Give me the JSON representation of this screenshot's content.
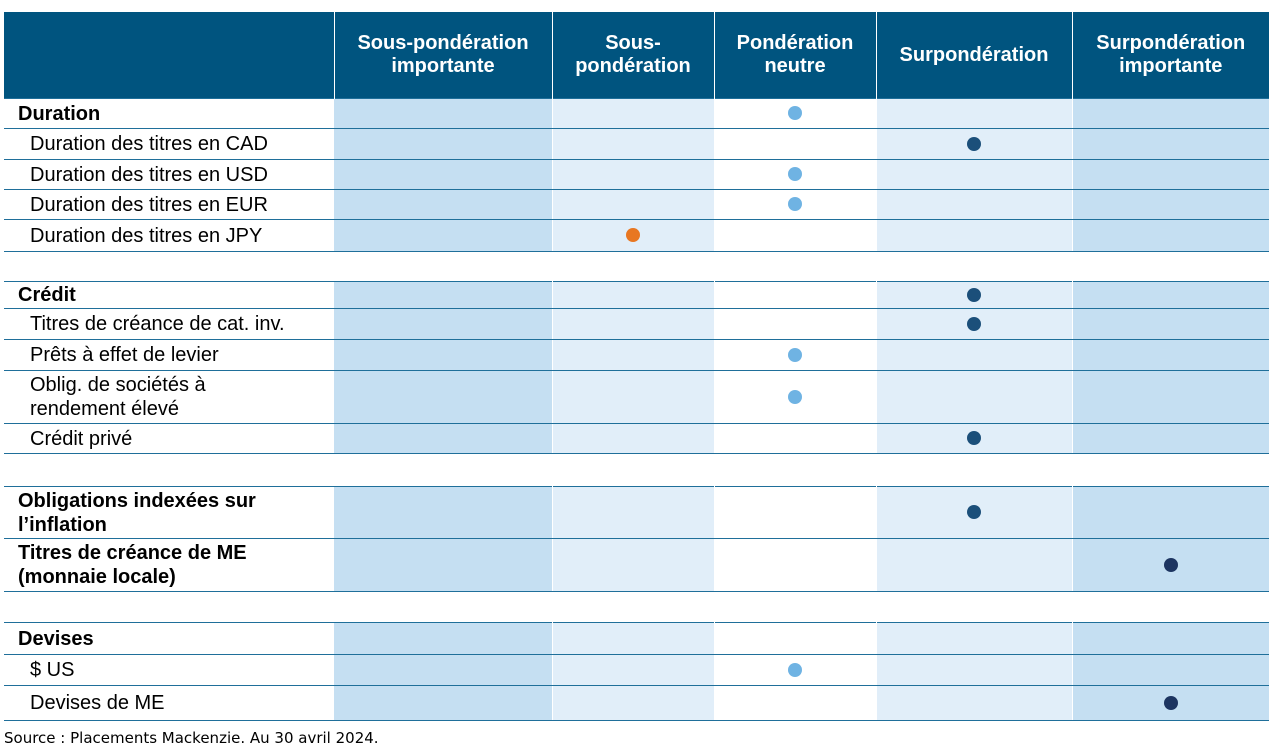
{
  "header": {
    "corner": "",
    "columns": [
      "Sous-pondération importante",
      "Sous-\npondération",
      "Pondération neutre",
      "Surpondération",
      "Surpondération importante"
    ]
  },
  "colors": {
    "light_dot": "#6fb3e3",
    "dark_dot": "#1b4f7a",
    "navy_dot": "#1d3561",
    "orange_dot": "#e87722",
    "header_bg": "#00547f"
  },
  "rows": [
    {
      "label": "Duration",
      "bold": true,
      "col": 3,
      "dot": "light"
    },
    {
      "label": "Duration des titres en CAD",
      "bold": false,
      "col": 4,
      "dot": "dark"
    },
    {
      "label": "Duration des titres en USD",
      "bold": false,
      "col": 3,
      "dot": "light"
    },
    {
      "label": "Duration des titres en EUR",
      "bold": false,
      "col": 3,
      "dot": "light"
    },
    {
      "label": "Duration des titres en JPY",
      "bold": false,
      "col": 2,
      "dot": "orange"
    },
    {
      "gap": true
    },
    {
      "label": "Crédit",
      "bold": true,
      "col": 4,
      "dot": "dark"
    },
    {
      "label": "Titres de créance de cat. inv.",
      "bold": false,
      "col": 4,
      "dot": "dark"
    },
    {
      "label": "Prêts à effet de levier",
      "bold": false,
      "col": 3,
      "dot": "light"
    },
    {
      "label": "Oblig. de sociétés à\nrendement élevé",
      "bold": false,
      "col": 3,
      "dot": "light"
    },
    {
      "label": "Crédit privé",
      "bold": false,
      "col": 4,
      "dot": "dark"
    },
    {
      "gap": true
    },
    {
      "label": "Obligations indexées sur\nl’inflation",
      "bold": true,
      "col": 4,
      "dot": "dark"
    },
    {
      "label": "Titres de créance de ME\n(monnaie locale)",
      "bold": true,
      "col": 5,
      "dot": "navy"
    },
    {
      "gap": true
    },
    {
      "label": "Devises",
      "bold": true,
      "col": 0,
      "dot": ""
    },
    {
      "label": "$ US",
      "bold": false,
      "col": 3,
      "dot": "light"
    },
    {
      "label": "Devises de ME",
      "bold": false,
      "col": 5,
      "dot": "navy"
    }
  ],
  "source": "Source : Placements Mackenzie. Au 30 avril 2024."
}
